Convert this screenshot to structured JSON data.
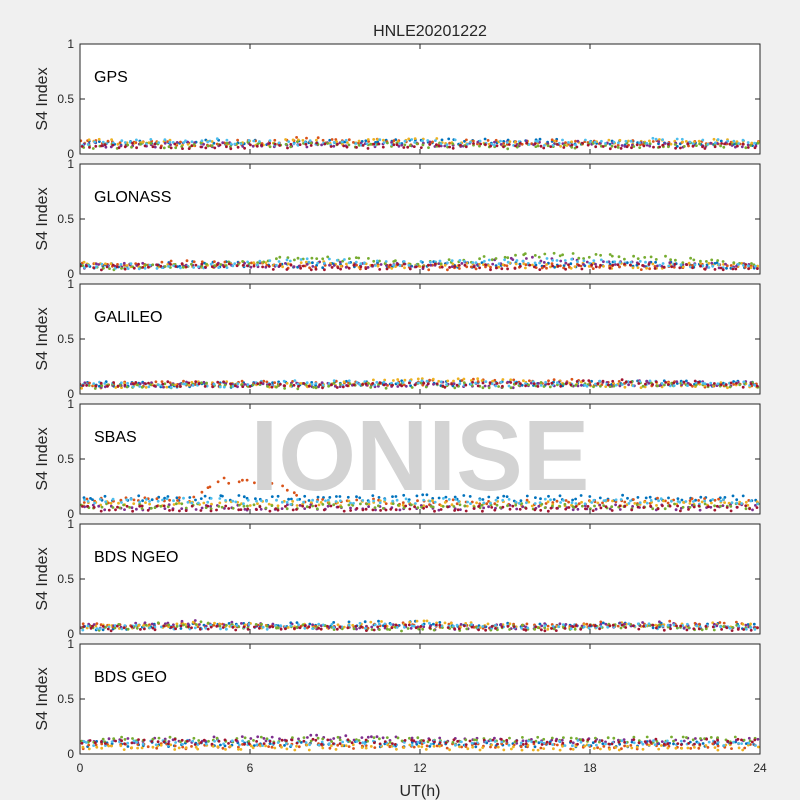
{
  "title": "HNLE20201222",
  "watermark": "IONISE",
  "chart_data": {
    "type": "scatter",
    "title": "HNLE20201222",
    "xlabel": "UT(h)",
    "ylabel": "S4 Index",
    "xlim": [
      0,
      24
    ],
    "xticks": [
      0,
      6,
      12,
      18,
      24
    ],
    "ylim": [
      0,
      1
    ],
    "yticks": [
      0,
      0.5,
      1
    ],
    "grid": false,
    "series_colors": [
      "#0072bd",
      "#d95319",
      "#edb120",
      "#7e2f8e",
      "#77ac30",
      "#4dbeee",
      "#a2142f"
    ],
    "panels": [
      {
        "name": "GPS",
        "series": [
          {
            "x": [
              0,
              4,
              8,
              12,
              16,
              20,
              24
            ],
            "y": [
              0.09,
              0.11,
              0.1,
              0.11,
              0.12,
              0.09,
              0.1
            ]
          },
          {
            "x": [
              0,
              4,
              8,
              12,
              16,
              20,
              24
            ],
            "y": [
              0.1,
              0.09,
              0.13,
              0.1,
              0.11,
              0.1,
              0.09
            ]
          },
          {
            "x": [
              0,
              4,
              8,
              12,
              16,
              20,
              24
            ],
            "y": [
              0.12,
              0.1,
              0.11,
              0.12,
              0.09,
              0.11,
              0.12
            ]
          },
          {
            "x": [
              0,
              4,
              8,
              12,
              16,
              20,
              24
            ],
            "y": [
              0.08,
              0.09,
              0.08,
              0.09,
              0.1,
              0.09,
              0.08
            ]
          },
          {
            "x": [
              0,
              4,
              8,
              12,
              16,
              20,
              24
            ],
            "y": [
              0.07,
              0.08,
              0.09,
              0.08,
              0.07,
              0.08,
              0.08
            ]
          },
          {
            "x": [
              0,
              4,
              8,
              12,
              16,
              20,
              24
            ],
            "y": [
              0.1,
              0.12,
              0.1,
              0.11,
              0.1,
              0.12,
              0.1
            ]
          },
          {
            "x": [
              0,
              4,
              8,
              12,
              16,
              20,
              24
            ],
            "y": [
              0.08,
              0.07,
              0.08,
              0.07,
              0.08,
              0.07,
              0.08
            ]
          }
        ]
      },
      {
        "name": "GLONASS",
        "series": [
          {
            "x": [
              0,
              4,
              8,
              12,
              16,
              20,
              24
            ],
            "y": [
              0.07,
              0.09,
              0.08,
              0.09,
              0.08,
              0.09,
              0.07
            ]
          },
          {
            "x": [
              0,
              4,
              8,
              12,
              16,
              20,
              24
            ],
            "y": [
              0.08,
              0.1,
              0.07,
              0.06,
              0.07,
              0.06,
              0.07
            ]
          },
          {
            "x": [
              0,
              4,
              8,
              12,
              16,
              20,
              24
            ],
            "y": [
              0.09,
              0.08,
              0.09,
              0.07,
              0.08,
              0.07,
              0.08
            ]
          },
          {
            "x": [
              0,
              4,
              8,
              12,
              16,
              20,
              24
            ],
            "y": [
              0.07,
              0.08,
              0.09,
              0.07,
              0.13,
              0.08,
              0.07
            ]
          },
          {
            "x": [
              0,
              4,
              8,
              12,
              16,
              20,
              24
            ],
            "y": [
              0.06,
              0.07,
              0.16,
              0.09,
              0.17,
              0.15,
              0.08
            ]
          },
          {
            "x": [
              0,
              4,
              8,
              12,
              16,
              20,
              24
            ],
            "y": [
              0.08,
              0.06,
              0.12,
              0.09,
              0.12,
              0.1,
              0.07
            ]
          },
          {
            "x": [
              0,
              4,
              8,
              12,
              16,
              20,
              24
            ],
            "y": [
              0.06,
              0.07,
              0.06,
              0.07,
              0.06,
              0.07,
              0.06
            ]
          }
        ]
      },
      {
        "name": "GALILEO",
        "series": [
          {
            "x": [
              0,
              4,
              8,
              12,
              16,
              20,
              24
            ],
            "y": [
              0.09,
              0.08,
              0.09,
              0.1,
              0.09,
              0.1,
              0.09
            ]
          },
          {
            "x": [
              0,
              4,
              8,
              12,
              16,
              20,
              24
            ],
            "y": [
              0.08,
              0.1,
              0.09,
              0.1,
              0.12,
              0.09,
              0.08
            ]
          },
          {
            "x": [
              0,
              4,
              8,
              12,
              16,
              20,
              24
            ],
            "y": [
              0.07,
              0.09,
              0.08,
              0.13,
              0.1,
              0.08,
              0.08
            ]
          },
          {
            "x": [
              0,
              4,
              8,
              12,
              16,
              20,
              24
            ],
            "y": [
              0.08,
              0.09,
              0.08,
              0.09,
              0.08,
              0.1,
              0.09
            ]
          },
          {
            "x": [
              0,
              4,
              8,
              12,
              16,
              20,
              24
            ],
            "y": [
              0.07,
              0.08,
              0.07,
              0.08,
              0.08,
              0.09,
              0.08
            ]
          },
          {
            "x": [
              0,
              4,
              8,
              12,
              16,
              20,
              24
            ],
            "y": [
              0.09,
              0.08,
              0.1,
              0.11,
              0.09,
              0.1,
              0.09
            ]
          },
          {
            "x": [
              0,
              4,
              8,
              12,
              16,
              20,
              24
            ],
            "y": [
              0.08,
              0.09,
              0.08,
              0.08,
              0.09,
              0.11,
              0.08
            ]
          }
        ]
      },
      {
        "name": "SBAS",
        "series": [
          {
            "x": [
              0,
              4,
              8,
              12,
              16,
              20,
              24
            ],
            "y": [
              0.14,
              0.15,
              0.14,
              0.15,
              0.14,
              0.15,
              0.14
            ]
          },
          {
            "x": [
              0,
              4,
              5,
              6,
              7,
              8,
              12,
              16,
              20,
              24
            ],
            "y": [
              0.12,
              0.13,
              0.31,
              0.28,
              0.26,
              0.12,
              0.11,
              0.1,
              0.12,
              0.11
            ]
          },
          {
            "x": [
              0,
              4,
              8,
              12,
              16,
              20,
              24
            ],
            "y": [
              0.09,
              0.1,
              0.09,
              0.1,
              0.09,
              0.1,
              0.09
            ]
          },
          {
            "x": [
              0,
              4,
              8,
              12,
              16,
              20,
              24
            ],
            "y": [
              0.06,
              0.06,
              0.06,
              0.06,
              0.06,
              0.06,
              0.06
            ]
          },
          {
            "x": [
              0,
              4,
              8,
              12,
              16,
              20,
              24
            ],
            "y": [
              0.07,
              0.07,
              0.07,
              0.07,
              0.07,
              0.07,
              0.07
            ]
          },
          {
            "x": [
              0,
              4,
              8,
              12,
              16,
              20,
              24
            ],
            "y": [
              0.11,
              0.12,
              0.11,
              0.12,
              0.11,
              0.12,
              0.11
            ]
          },
          {
            "x": [
              0,
              4,
              8,
              12,
              16,
              20,
              24
            ],
            "y": [
              0.05,
              0.05,
              0.05,
              0.05,
              0.05,
              0.05,
              0.05
            ]
          }
        ]
      },
      {
        "name": "BDS NGEO",
        "series": [
          {
            "x": [
              0,
              4,
              8,
              12,
              16,
              20,
              24
            ],
            "y": [
              0.06,
              0.07,
              0.08,
              0.1,
              0.07,
              0.08,
              0.07
            ]
          },
          {
            "x": [
              0,
              4,
              8,
              12,
              16,
              20,
              24
            ],
            "y": [
              0.07,
              0.08,
              0.06,
              0.08,
              0.07,
              0.1,
              0.08
            ]
          },
          {
            "x": [
              0,
              4,
              8,
              12,
              16,
              20,
              24
            ],
            "y": [
              0.06,
              0.09,
              0.07,
              0.1,
              0.06,
              0.09,
              0.07
            ]
          },
          {
            "x": [
              0,
              4,
              8,
              12,
              16,
              20,
              24
            ],
            "y": [
              0.07,
              0.1,
              0.07,
              0.06,
              0.07,
              0.09,
              0.06
            ]
          },
          {
            "x": [
              0,
              4,
              8,
              12,
              16,
              20,
              24
            ],
            "y": [
              0.05,
              0.09,
              0.06,
              0.05,
              0.06,
              0.07,
              0.05
            ]
          },
          {
            "x": [
              0,
              4,
              8,
              12,
              16,
              20,
              24
            ],
            "y": [
              0.06,
              0.06,
              0.07,
              0.08,
              0.06,
              0.07,
              0.06
            ]
          },
          {
            "x": [
              0,
              4,
              8,
              12,
              16,
              20,
              24
            ],
            "y": [
              0.05,
              0.06,
              0.05,
              0.06,
              0.05,
              0.06,
              0.05
            ]
          }
        ]
      },
      {
        "name": "BDS GEO",
        "series": [
          {
            "x": [
              0,
              4,
              8,
              12,
              16,
              20,
              24
            ],
            "y": [
              0.09,
              0.09,
              0.09,
              0.09,
              0.09,
              0.09,
              0.09
            ]
          },
          {
            "x": [
              0,
              4,
              8,
              12,
              16,
              20,
              24
            ],
            "y": [
              0.07,
              0.07,
              0.07,
              0.07,
              0.07,
              0.07,
              0.07
            ]
          },
          {
            "x": [
              0,
              4,
              8,
              12,
              16,
              20,
              24
            ],
            "y": [
              0.06,
              0.06,
              0.06,
              0.06,
              0.06,
              0.06,
              0.06
            ]
          },
          {
            "x": [
              0,
              4,
              8,
              12,
              16,
              20,
              24
            ],
            "y": [
              0.12,
              0.13,
              0.15,
              0.13,
              0.12,
              0.12,
              0.12
            ]
          },
          {
            "x": [
              0,
              4,
              8,
              12,
              16,
              20,
              24
            ],
            "y": [
              0.13,
              0.13,
              0.13,
              0.13,
              0.13,
              0.13,
              0.13
            ]
          },
          {
            "x": [
              0,
              4,
              8,
              12,
              16,
              20,
              24
            ],
            "y": [
              0.1,
              0.1,
              0.1,
              0.1,
              0.1,
              0.1,
              0.1
            ]
          },
          {
            "x": [
              0,
              4,
              8,
              12,
              16,
              20,
              24
            ],
            "y": [
              0.11,
              0.11,
              0.11,
              0.11,
              0.11,
              0.11,
              0.11
            ]
          }
        ]
      }
    ]
  }
}
